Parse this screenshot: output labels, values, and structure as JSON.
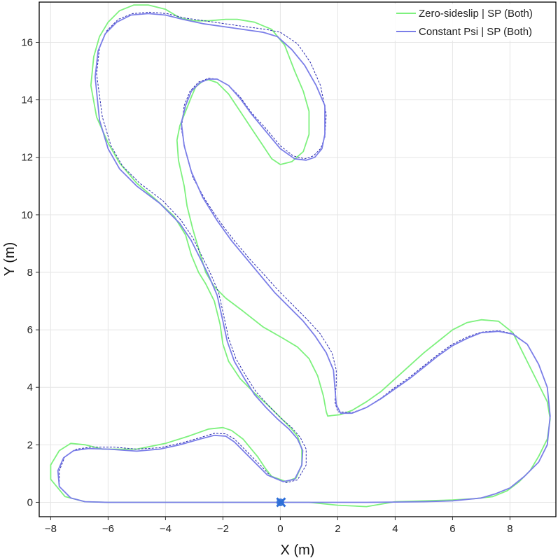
{
  "chart_data": {
    "type": "line",
    "title": "",
    "xlabel": "X (m)",
    "ylabel": "Y (m)",
    "xlim": [
      -8.4,
      9.6
    ],
    "ylim": [
      -0.5,
      17.4
    ],
    "xticks": [
      -8,
      -6,
      -4,
      -2,
      0,
      2,
      4,
      6,
      8
    ],
    "yticks": [
      0,
      2,
      4,
      6,
      8,
      10,
      12,
      14,
      16
    ],
    "xtick_labels": [
      "−8",
      "−6",
      "−4",
      "−2",
      "0",
      "2",
      "4",
      "6",
      "8"
    ],
    "ytick_labels": [
      "0",
      "2",
      "4",
      "6",
      "8",
      "10",
      "12",
      "14",
      "16"
    ],
    "grid": true,
    "legend_position": "top-right",
    "series": [
      {
        "name": "Zero-sideslip | SP (Both)",
        "color": "#7ef17e",
        "dash": "solid",
        "in_legend": true,
        "x": [
          0,
          -1,
          -2,
          -3,
          -4,
          -5,
          -6,
          -6.8,
          -7.5,
          -8.0,
          -8.0,
          -7.7,
          -7.3,
          -6.8,
          -6.2,
          -5.0,
          -4.0,
          -3.2,
          -2.5,
          -2.0,
          -1.7,
          -1.3,
          -0.8,
          -0.5,
          -0.3,
          0.2,
          0.55,
          0.75,
          0.75,
          0.6,
          0.35,
          0.0,
          -0.4,
          -0.9,
          -1.4,
          -1.8,
          -2.0,
          -2.1,
          -2.3,
          -2.6,
          -2.85,
          -3.1,
          -3.3,
          -3.7,
          -4.3,
          -5.0,
          -5.6,
          -6.0,
          -6.4,
          -6.6,
          -6.5,
          -6.3,
          -6.0,
          -5.6,
          -5.1,
          -4.6,
          -4.0,
          -3.5,
          -3.0,
          -2.5,
          -1.9,
          -1.5,
          -0.9,
          -0.3,
          0.15,
          0.5,
          0.8,
          1.0,
          1.0,
          0.8,
          0.4,
          0.0,
          -0.3,
          -0.6,
          -1.0,
          -1.4,
          -1.8,
          -2.2,
          -2.5,
          -2.7,
          -2.95,
          -3.1,
          -3.3,
          -3.5,
          -3.6,
          -3.55,
          -3.35,
          -3.25,
          -3.05,
          -2.9,
          -2.75,
          -2.6,
          -2.3,
          -1.9,
          -1.3,
          -0.6,
          0.1,
          0.6,
          1.0,
          1.3,
          1.5,
          1.6,
          1.65,
          1.8,
          2.1,
          2.5,
          3.0,
          3.5,
          4.0,
          4.5,
          5.0,
          5.5,
          6.0,
          6.5,
          7.0,
          7.6,
          8.1,
          8.4,
          8.7,
          9.0,
          9.3,
          9.4,
          9.3,
          9.0,
          8.7,
          8.3,
          7.9,
          7.4,
          6.8,
          6.0,
          5.0,
          4.0,
          3.0,
          2.0,
          1.0,
          0
        ],
        "y": [
          0,
          0,
          0,
          0,
          0,
          0,
          0,
          0.02,
          0.2,
          0.8,
          1.3,
          1.8,
          2.05,
          2.0,
          1.85,
          1.85,
          2.05,
          2.3,
          2.55,
          2.6,
          2.5,
          2.2,
          1.6,
          1.15,
          0.9,
          0.72,
          0.85,
          1.3,
          1.85,
          2.3,
          2.6,
          2.95,
          3.35,
          3.8,
          4.3,
          4.9,
          5.5,
          6.2,
          7.0,
          7.6,
          8.0,
          8.6,
          9.3,
          9.95,
          10.5,
          11.1,
          11.8,
          12.5,
          13.4,
          14.5,
          15.5,
          16.2,
          16.7,
          17.1,
          17.3,
          17.3,
          17.15,
          16.85,
          16.75,
          16.75,
          16.8,
          16.8,
          16.7,
          16.45,
          15.9,
          15.0,
          14.3,
          13.6,
          12.8,
          12.2,
          11.85,
          11.75,
          11.95,
          12.4,
          13.0,
          13.6,
          14.2,
          14.6,
          14.7,
          14.65,
          14.45,
          14.1,
          13.6,
          13.1,
          12.6,
          11.9,
          11.0,
          10.3,
          9.5,
          9.0,
          8.5,
          8.0,
          7.5,
          7.1,
          6.65,
          6.1,
          5.7,
          5.4,
          5.0,
          4.4,
          3.7,
          3.15,
          3.0,
          3.02,
          3.05,
          3.2,
          3.5,
          3.85,
          4.3,
          4.75,
          5.2,
          5.6,
          6.0,
          6.25,
          6.35,
          6.3,
          5.9,
          5.3,
          4.7,
          4.1,
          3.5,
          2.9,
          2.2,
          1.6,
          1.1,
          0.7,
          0.4,
          0.2,
          0.13,
          0.08,
          0.05,
          0.02,
          -0.15,
          -0.1,
          0,
          0
        ]
      },
      {
        "name": "Constant Psi | SP (Both)",
        "color": "#7b7ee8",
        "dash": "solid",
        "in_legend": true,
        "x": [
          0,
          -1,
          -2,
          -3,
          -4,
          -5,
          -6,
          -6.8,
          -7.3,
          -7.7,
          -7.75,
          -7.55,
          -7.2,
          -6.7,
          -6.0,
          -5.0,
          -4.2,
          -3.5,
          -2.8,
          -2.3,
          -1.9,
          -1.6,
          -1.2,
          -0.8,
          -0.45,
          0.1,
          0.5,
          0.75,
          0.78,
          0.6,
          0.3,
          -0.1,
          -0.5,
          -0.9,
          -1.25,
          -1.6,
          -1.85,
          -2.0,
          -2.2,
          -2.5,
          -2.8,
          -3.1,
          -3.5,
          -4.2,
          -5.0,
          -5.6,
          -6.0,
          -6.3,
          -6.45,
          -6.35,
          -6.1,
          -5.7,
          -5.2,
          -4.6,
          -4.0,
          -3.4,
          -2.7,
          -2.0,
          -1.3,
          -0.6,
          -0.1,
          0.4,
          0.85,
          1.25,
          1.55,
          1.55,
          1.45,
          1.2,
          0.9,
          0.5,
          0.0,
          -0.5,
          -1.0,
          -1.4,
          -1.8,
          -2.2,
          -2.5,
          -2.8,
          -3.1,
          -3.3,
          -3.45,
          -3.35,
          -3.1,
          -2.7,
          -2.2,
          -1.7,
          -1.2,
          -0.7,
          -0.2,
          0.3,
          0.8,
          1.2,
          1.6,
          1.85,
          1.9,
          1.95,
          2.1,
          2.5,
          3.0,
          3.5,
          4.0,
          4.5,
          5.0,
          5.5,
          6.0,
          6.5,
          7.0,
          7.6,
          8.1,
          8.6,
          9.0,
          9.3,
          9.4,
          9.3,
          9.0,
          8.5,
          8.0,
          7.5,
          7.0,
          6.0,
          5.0,
          4.0,
          3.0,
          2.0,
          1.0,
          0
        ],
        "y": [
          0,
          0,
          0,
          0,
          0,
          0,
          0,
          0.02,
          0.15,
          0.55,
          1.1,
          1.55,
          1.8,
          1.87,
          1.85,
          1.78,
          1.85,
          2.0,
          2.2,
          2.33,
          2.3,
          2.1,
          1.7,
          1.3,
          0.95,
          0.72,
          0.8,
          1.3,
          1.8,
          2.2,
          2.55,
          2.9,
          3.3,
          3.75,
          4.3,
          4.9,
          5.6,
          6.3,
          7.2,
          7.9,
          8.5,
          9.1,
          9.7,
          10.4,
          11.0,
          11.6,
          12.3,
          13.3,
          14.8,
          15.7,
          16.3,
          16.7,
          16.95,
          17.0,
          16.95,
          16.8,
          16.65,
          16.55,
          16.45,
          16.35,
          16.2,
          15.75,
          15.2,
          14.5,
          13.8,
          12.8,
          12.3,
          12.0,
          11.9,
          11.95,
          12.3,
          12.9,
          13.5,
          14.05,
          14.5,
          14.72,
          14.72,
          14.6,
          14.3,
          13.8,
          13.2,
          12.4,
          11.5,
          10.6,
          9.8,
          9.1,
          8.5,
          7.9,
          7.3,
          6.8,
          6.3,
          5.8,
          5.2,
          4.6,
          4.0,
          3.4,
          3.1,
          3.1,
          3.3,
          3.6,
          3.95,
          4.3,
          4.7,
          5.1,
          5.45,
          5.7,
          5.9,
          5.95,
          5.85,
          5.5,
          4.8,
          4.0,
          3.0,
          2.0,
          1.4,
          0.9,
          0.5,
          0.3,
          0.15,
          0.05,
          0.02,
          0.01,
          0,
          0,
          0,
          0
        ]
      },
      {
        "name": "",
        "color": "#2c2cb0",
        "dash": "dashed",
        "in_legend": false,
        "x": [
          0,
          -1,
          -2,
          -3,
          -4,
          -5,
          -6,
          -6.8,
          -7.3,
          -7.7,
          -7.7,
          -7.5,
          -7.1,
          -6.6,
          -5.8,
          -5.0,
          -4.2,
          -3.5,
          -2.8,
          -2.3,
          -1.9,
          -1.6,
          -1.15,
          -0.7,
          -0.35,
          0.2,
          0.6,
          0.9,
          0.9,
          0.7,
          0.4,
          0.0,
          -0.4,
          -0.85,
          -1.2,
          -1.55,
          -1.8,
          -1.95,
          -2.15,
          -2.45,
          -2.75,
          -3.05,
          -3.45,
          -4.1,
          -4.9,
          -5.5,
          -5.9,
          -6.2,
          -6.4,
          -6.3,
          -6.05,
          -5.65,
          -5.15,
          -4.55,
          -3.95,
          -3.35,
          -2.65,
          -1.95,
          -1.25,
          -0.5,
          0.0,
          0.6,
          1.05,
          1.4,
          1.6,
          1.55,
          1.4,
          1.15,
          0.85,
          0.45,
          0.0,
          -0.5,
          -1.0,
          -1.4,
          -1.8,
          -2.2,
          -2.5,
          -2.85,
          -3.15,
          -3.35,
          -3.45,
          -3.3,
          -3.05,
          -2.6,
          -2.1,
          -1.6,
          -1.1,
          -0.55,
          -0.05,
          0.45,
          0.95,
          1.4,
          1.8,
          1.95,
          1.95,
          1.9,
          2.0,
          2.5,
          3.0,
          3.5,
          4.0,
          4.5,
          5.0,
          5.5,
          6.0,
          6.5,
          7.0,
          7.6,
          8.1,
          8.6,
          9.0,
          9.3,
          9.4,
          9.3,
          9.0,
          8.5,
          8.0,
          7.5,
          7.0,
          6.0,
          5.0,
          4.0,
          3.0,
          2.0,
          1.0,
          0
        ],
        "y": [
          0,
          0,
          0,
          0,
          0,
          0,
          0,
          0.02,
          0.15,
          0.55,
          1.1,
          1.6,
          1.85,
          1.92,
          1.92,
          1.85,
          1.9,
          2.05,
          2.25,
          2.4,
          2.38,
          2.2,
          1.75,
          1.3,
          0.92,
          0.68,
          0.78,
          1.3,
          1.85,
          2.25,
          2.6,
          2.95,
          3.35,
          3.85,
          4.4,
          5.0,
          5.7,
          6.4,
          7.3,
          8.0,
          8.6,
          9.2,
          9.8,
          10.5,
          11.1,
          11.7,
          12.4,
          13.4,
          14.9,
          15.8,
          16.4,
          16.8,
          17.0,
          17.05,
          17.0,
          16.85,
          16.75,
          16.65,
          16.55,
          16.45,
          16.35,
          15.95,
          15.3,
          14.5,
          13.5,
          12.7,
          12.3,
          12.05,
          11.95,
          12.05,
          12.4,
          13.0,
          13.55,
          14.1,
          14.5,
          14.72,
          14.75,
          14.62,
          14.3,
          13.8,
          13.0,
          12.2,
          11.3,
          10.5,
          9.75,
          9.1,
          8.5,
          7.9,
          7.35,
          6.85,
          6.35,
          5.85,
          5.2,
          4.6,
          4.1,
          3.5,
          3.15,
          3.12,
          3.3,
          3.62,
          4.0,
          4.35,
          4.75,
          5.15,
          5.5,
          5.75,
          5.92,
          5.97,
          5.87,
          5.5,
          4.8,
          4.0,
          3.0,
          2.0,
          1.4,
          0.9,
          0.5,
          0.3,
          0.15,
          0.05,
          0.02,
          0.01,
          0,
          0,
          0,
          0
        ]
      }
    ],
    "markers": [
      {
        "x": 0,
        "y": 0,
        "symbol": "x",
        "color": "#2e6fd8"
      },
      {
        "x": 0,
        "y": 0,
        "symbol": "circle",
        "color": "#2e6fd8"
      }
    ]
  }
}
